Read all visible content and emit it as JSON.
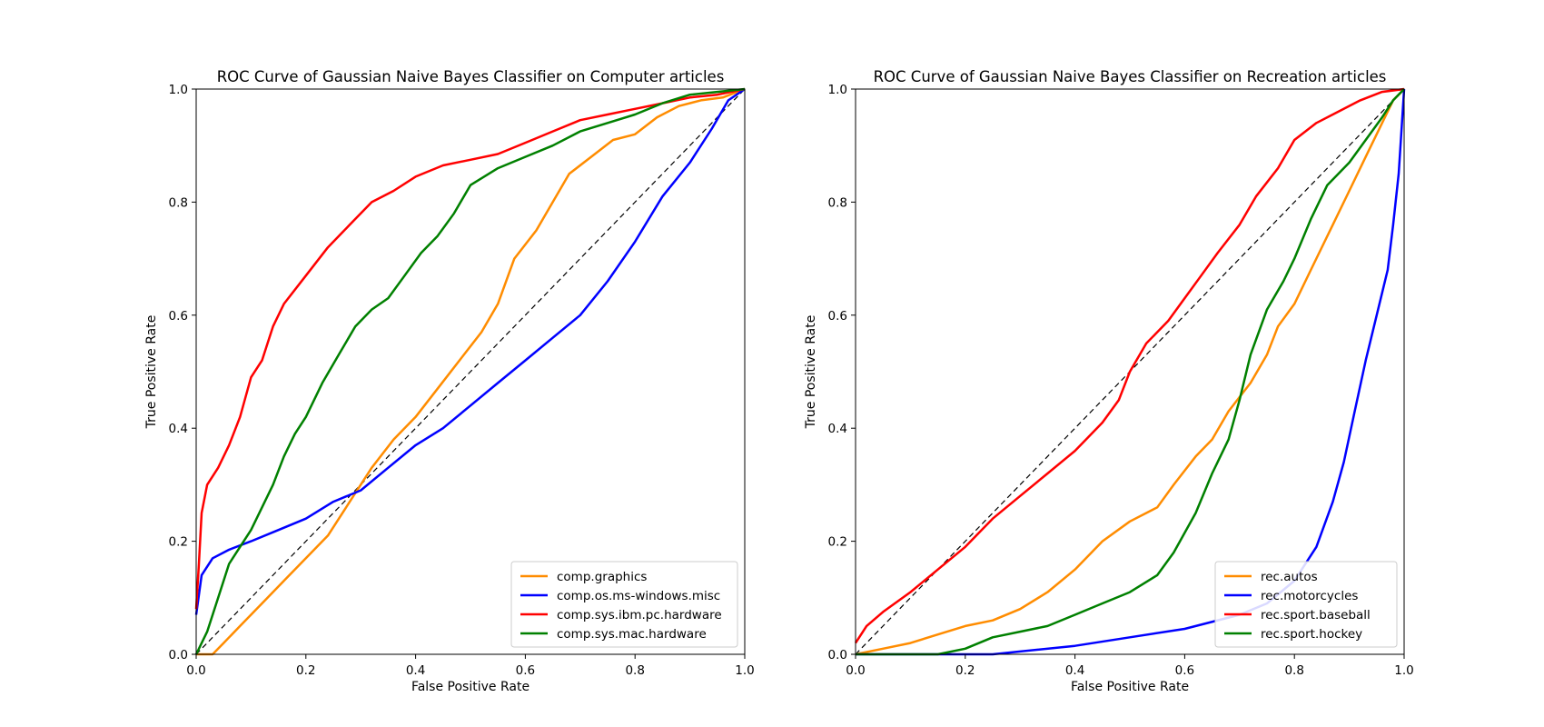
{
  "chart_data": [
    {
      "type": "line",
      "title": "ROC Curve of Gaussian Naive Bayes Classifier on Computer articles",
      "xlabel": "False Positive Rate",
      "ylabel": "True Positive Rate",
      "xlim": [
        0,
        1
      ],
      "ylim": [
        0,
        1
      ],
      "xticks": [
        "0.0",
        "0.2",
        "0.4",
        "0.6",
        "0.8",
        "1.0"
      ],
      "yticks": [
        "0.0",
        "0.2",
        "0.4",
        "0.6",
        "0.8",
        "1.0"
      ],
      "grid": false,
      "legend_position": "lower-right",
      "diagonal_reference": true,
      "series": [
        {
          "name": "comp.graphics",
          "color": "#ff8c00",
          "points": [
            [
              0,
              0
            ],
            [
              0.03,
              0
            ],
            [
              0.05,
              0.02
            ],
            [
              0.08,
              0.05
            ],
            [
              0.12,
              0.09
            ],
            [
              0.16,
              0.13
            ],
            [
              0.2,
              0.17
            ],
            [
              0.24,
              0.21
            ],
            [
              0.28,
              0.27
            ],
            [
              0.32,
              0.33
            ],
            [
              0.36,
              0.38
            ],
            [
              0.4,
              0.42
            ],
            [
              0.44,
              0.47
            ],
            [
              0.48,
              0.52
            ],
            [
              0.52,
              0.57
            ],
            [
              0.55,
              0.62
            ],
            [
              0.58,
              0.7
            ],
            [
              0.62,
              0.75
            ],
            [
              0.65,
              0.8
            ],
            [
              0.68,
              0.85
            ],
            [
              0.72,
              0.88
            ],
            [
              0.76,
              0.91
            ],
            [
              0.8,
              0.92
            ],
            [
              0.84,
              0.95
            ],
            [
              0.88,
              0.97
            ],
            [
              0.92,
              0.98
            ],
            [
              0.96,
              0.985
            ],
            [
              1,
              1
            ]
          ]
        },
        {
          "name": "comp.os.ms-windows.misc",
          "color": "#0000ff",
          "points": [
            [
              0,
              0.07
            ],
            [
              0.01,
              0.14
            ],
            [
              0.03,
              0.17
            ],
            [
              0.06,
              0.185
            ],
            [
              0.1,
              0.2
            ],
            [
              0.15,
              0.22
            ],
            [
              0.2,
              0.24
            ],
            [
              0.25,
              0.27
            ],
            [
              0.3,
              0.29
            ],
            [
              0.35,
              0.33
            ],
            [
              0.4,
              0.37
            ],
            [
              0.45,
              0.4
            ],
            [
              0.5,
              0.44
            ],
            [
              0.55,
              0.48
            ],
            [
              0.6,
              0.52
            ],
            [
              0.65,
              0.56
            ],
            [
              0.7,
              0.6
            ],
            [
              0.75,
              0.66
            ],
            [
              0.8,
              0.73
            ],
            [
              0.85,
              0.81
            ],
            [
              0.9,
              0.87
            ],
            [
              0.94,
              0.93
            ],
            [
              0.97,
              0.98
            ],
            [
              1,
              1
            ]
          ]
        },
        {
          "name": "comp.sys.ibm.pc.hardware",
          "color": "#ff0000",
          "points": [
            [
              0,
              0.08
            ],
            [
              0.005,
              0.16
            ],
            [
              0.01,
              0.25
            ],
            [
              0.02,
              0.3
            ],
            [
              0.04,
              0.33
            ],
            [
              0.06,
              0.37
            ],
            [
              0.08,
              0.42
            ],
            [
              0.1,
              0.49
            ],
            [
              0.12,
              0.52
            ],
            [
              0.14,
              0.58
            ],
            [
              0.16,
              0.62
            ],
            [
              0.2,
              0.67
            ],
            [
              0.24,
              0.72
            ],
            [
              0.28,
              0.76
            ],
            [
              0.32,
              0.8
            ],
            [
              0.36,
              0.82
            ],
            [
              0.4,
              0.845
            ],
            [
              0.45,
              0.865
            ],
            [
              0.5,
              0.875
            ],
            [
              0.55,
              0.885
            ],
            [
              0.6,
              0.905
            ],
            [
              0.65,
              0.925
            ],
            [
              0.7,
              0.945
            ],
            [
              0.75,
              0.955
            ],
            [
              0.8,
              0.965
            ],
            [
              0.85,
              0.975
            ],
            [
              0.9,
              0.985
            ],
            [
              0.95,
              0.99
            ],
            [
              1,
              1
            ]
          ]
        },
        {
          "name": "comp.sys.mac.hardware",
          "color": "#008000",
          "points": [
            [
              0,
              0
            ],
            [
              0.02,
              0.04
            ],
            [
              0.04,
              0.1
            ],
            [
              0.06,
              0.16
            ],
            [
              0.08,
              0.19
            ],
            [
              0.1,
              0.22
            ],
            [
              0.12,
              0.26
            ],
            [
              0.14,
              0.3
            ],
            [
              0.16,
              0.35
            ],
            [
              0.18,
              0.39
            ],
            [
              0.2,
              0.42
            ],
            [
              0.23,
              0.48
            ],
            [
              0.26,
              0.53
            ],
            [
              0.29,
              0.58
            ],
            [
              0.32,
              0.61
            ],
            [
              0.35,
              0.63
            ],
            [
              0.38,
              0.67
            ],
            [
              0.41,
              0.71
            ],
            [
              0.44,
              0.74
            ],
            [
              0.47,
              0.78
            ],
            [
              0.5,
              0.83
            ],
            [
              0.55,
              0.86
            ],
            [
              0.6,
              0.88
            ],
            [
              0.65,
              0.9
            ],
            [
              0.7,
              0.925
            ],
            [
              0.75,
              0.94
            ],
            [
              0.8,
              0.955
            ],
            [
              0.85,
              0.975
            ],
            [
              0.9,
              0.99
            ],
            [
              0.95,
              0.995
            ],
            [
              1,
              1
            ]
          ]
        }
      ]
    },
    {
      "type": "line",
      "title": "ROC Curve of Gaussian Naive Bayes Classifier on Recreation articles",
      "xlabel": "False Positive Rate",
      "ylabel": "True Positive Rate",
      "xlim": [
        0,
        1
      ],
      "ylim": [
        0,
        1
      ],
      "xticks": [
        "0.0",
        "0.2",
        "0.4",
        "0.6",
        "0.8",
        "1.0"
      ],
      "yticks": [
        "0.0",
        "0.2",
        "0.4",
        "0.6",
        "0.8",
        "1.0"
      ],
      "grid": false,
      "legend_position": "lower-right",
      "diagonal_reference": true,
      "series": [
        {
          "name": "rec.autos",
          "color": "#ff8c00",
          "points": [
            [
              0,
              0
            ],
            [
              0.05,
              0.01
            ],
            [
              0.1,
              0.02
            ],
            [
              0.15,
              0.035
            ],
            [
              0.2,
              0.05
            ],
            [
              0.25,
              0.06
            ],
            [
              0.3,
              0.08
            ],
            [
              0.35,
              0.11
            ],
            [
              0.4,
              0.15
            ],
            [
              0.45,
              0.2
            ],
            [
              0.5,
              0.235
            ],
            [
              0.55,
              0.26
            ],
            [
              0.58,
              0.3
            ],
            [
              0.62,
              0.35
            ],
            [
              0.65,
              0.38
            ],
            [
              0.68,
              0.43
            ],
            [
              0.72,
              0.48
            ],
            [
              0.75,
              0.53
            ],
            [
              0.77,
              0.58
            ],
            [
              0.8,
              0.62
            ],
            [
              0.83,
              0.68
            ],
            [
              0.87,
              0.76
            ],
            [
              0.9,
              0.82
            ],
            [
              0.93,
              0.88
            ],
            [
              0.96,
              0.94
            ],
            [
              0.98,
              0.98
            ],
            [
              1,
              1
            ]
          ]
        },
        {
          "name": "rec.motorcycles",
          "color": "#0000ff",
          "points": [
            [
              0,
              0
            ],
            [
              0.25,
              0
            ],
            [
              0.3,
              0.005
            ],
            [
              0.4,
              0.015
            ],
            [
              0.5,
              0.03
            ],
            [
              0.6,
              0.045
            ],
            [
              0.7,
              0.07
            ],
            [
              0.75,
              0.09
            ],
            [
              0.8,
              0.13
            ],
            [
              0.84,
              0.19
            ],
            [
              0.87,
              0.27
            ],
            [
              0.89,
              0.34
            ],
            [
              0.91,
              0.43
            ],
            [
              0.93,
              0.52
            ],
            [
              0.95,
              0.6
            ],
            [
              0.97,
              0.68
            ],
            [
              0.98,
              0.76
            ],
            [
              0.99,
              0.85
            ],
            [
              1,
              1
            ]
          ]
        },
        {
          "name": "rec.sport.baseball",
          "color": "#ff0000",
          "points": [
            [
              0,
              0.02
            ],
            [
              0.02,
              0.05
            ],
            [
              0.05,
              0.075
            ],
            [
              0.1,
              0.11
            ],
            [
              0.15,
              0.15
            ],
            [
              0.2,
              0.19
            ],
            [
              0.25,
              0.24
            ],
            [
              0.3,
              0.28
            ],
            [
              0.35,
              0.32
            ],
            [
              0.4,
              0.36
            ],
            [
              0.45,
              0.41
            ],
            [
              0.48,
              0.45
            ],
            [
              0.5,
              0.5
            ],
            [
              0.53,
              0.55
            ],
            [
              0.57,
              0.59
            ],
            [
              0.6,
              0.63
            ],
            [
              0.63,
              0.67
            ],
            [
              0.66,
              0.71
            ],
            [
              0.7,
              0.76
            ],
            [
              0.73,
              0.81
            ],
            [
              0.77,
              0.86
            ],
            [
              0.8,
              0.91
            ],
            [
              0.84,
              0.94
            ],
            [
              0.88,
              0.96
            ],
            [
              0.92,
              0.98
            ],
            [
              0.96,
              0.995
            ],
            [
              1,
              1
            ]
          ]
        },
        {
          "name": "rec.sport.hockey",
          "color": "#008000",
          "points": [
            [
              0,
              0
            ],
            [
              0.15,
              0
            ],
            [
              0.2,
              0.01
            ],
            [
              0.25,
              0.03
            ],
            [
              0.3,
              0.04
            ],
            [
              0.35,
              0.05
            ],
            [
              0.4,
              0.07
            ],
            [
              0.45,
              0.09
            ],
            [
              0.5,
              0.11
            ],
            [
              0.55,
              0.14
            ],
            [
              0.58,
              0.18
            ],
            [
              0.62,
              0.25
            ],
            [
              0.65,
              0.32
            ],
            [
              0.68,
              0.38
            ],
            [
              0.7,
              0.45
            ],
            [
              0.72,
              0.53
            ],
            [
              0.75,
              0.61
            ],
            [
              0.78,
              0.66
            ],
            [
              0.8,
              0.7
            ],
            [
              0.83,
              0.77
            ],
            [
              0.86,
              0.83
            ],
            [
              0.9,
              0.87
            ],
            [
              0.93,
              0.91
            ],
            [
              0.96,
              0.95
            ],
            [
              0.98,
              0.98
            ],
            [
              1,
              1
            ]
          ]
        }
      ]
    }
  ]
}
